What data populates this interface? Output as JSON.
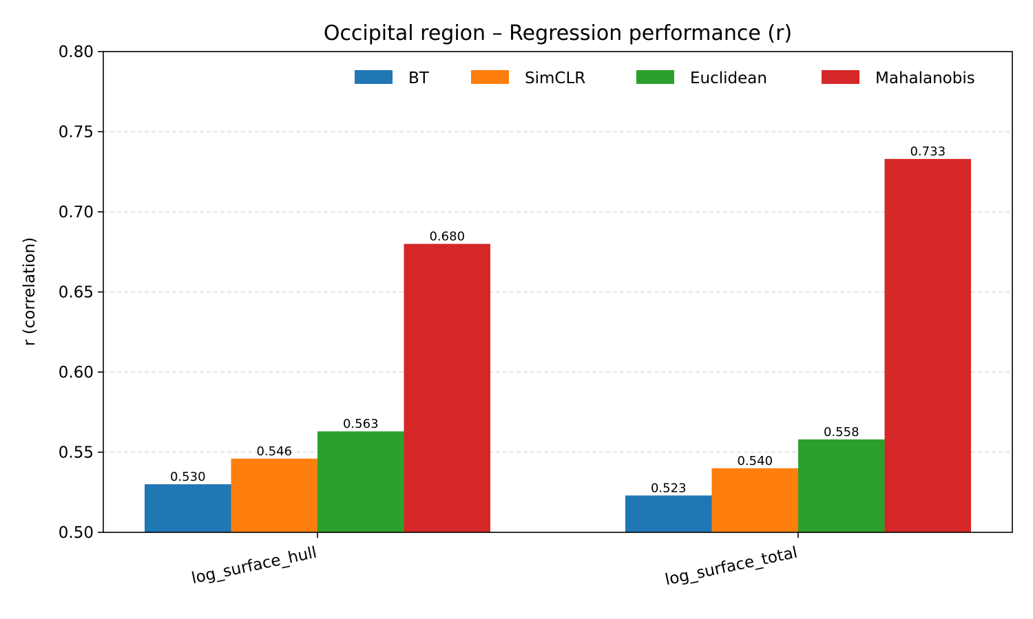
{
  "chart_data": {
    "type": "bar",
    "title": "Occipital region – Regression performance (r)",
    "xlabel": "",
    "ylabel": "r (correlation)",
    "ylim": [
      0.5,
      0.8
    ],
    "yticks": [
      "0.50",
      "0.55",
      "0.60",
      "0.65",
      "0.70",
      "0.75",
      "0.80"
    ],
    "categories": [
      "log_surface_hull",
      "log_surface_total"
    ],
    "series": [
      {
        "name": "BT",
        "color": "#1f77b4",
        "values": [
          0.53,
          0.523
        ],
        "labels": [
          "0.530",
          "0.523"
        ]
      },
      {
        "name": "SimCLR",
        "color": "#ff7f0e",
        "values": [
          0.546,
          0.54
        ],
        "labels": [
          "0.546",
          "0.540"
        ]
      },
      {
        "name": "Euclidean",
        "color": "#2ca02c",
        "values": [
          0.563,
          0.558
        ],
        "labels": [
          "0.563",
          "0.558"
        ]
      },
      {
        "name": "Mahalanobis",
        "color": "#d62728",
        "values": [
          0.68,
          0.733
        ],
        "labels": [
          "0.680",
          "0.733"
        ]
      }
    ],
    "grid": "y-dashed",
    "legend_position": "top-right"
  }
}
